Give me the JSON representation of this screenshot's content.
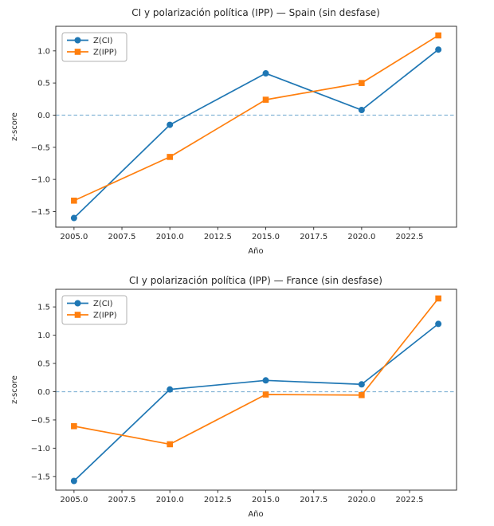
{
  "figure": {
    "background": "#ffffff",
    "text_color": "#262626",
    "spine_color": "#333333"
  },
  "chart_data": [
    {
      "type": "line",
      "title": "CI y polarización política (IPP) — Spain (sin desfase)",
      "xlabel": "Año",
      "ylabel": "z-score",
      "x": [
        2005,
        2010,
        2015,
        2020,
        2024
      ],
      "series": [
        {
          "name": "Z(CI)",
          "color": "#1f77b4",
          "marker": "circle",
          "values": [
            -1.6,
            -0.15,
            0.65,
            0.08,
            1.02
          ]
        },
        {
          "name": "Z(IPP)",
          "color": "#ff7f0e",
          "marker": "square",
          "values": [
            -1.33,
            -0.65,
            0.24,
            0.5,
            1.24
          ]
        }
      ],
      "baseline_y": 0,
      "baseline_color": "#1f77b4",
      "baseline_style": "dashed",
      "x_ticks": [
        "2005.0",
        "2007.5",
        "2010.0",
        "2012.5",
        "2015.0",
        "2017.5",
        "2020.0",
        "2022.5"
      ],
      "y_ticks": [
        "1.0",
        "0.5",
        "0.0",
        "-0.5",
        "-1.0",
        "-1.5"
      ],
      "xlim": [
        2004.05,
        2024.95
      ],
      "ylim": [
        -1.742,
        1.382
      ],
      "grid": false,
      "legend_position": "upper left"
    },
    {
      "type": "line",
      "title": "CI y polarización política (IPP) — France (sin desfase)",
      "xlabel": "Año",
      "ylabel": "z-score",
      "x": [
        2005,
        2010,
        2015,
        2020,
        2024
      ],
      "series": [
        {
          "name": "Z(CI)",
          "color": "#1f77b4",
          "marker": "circle",
          "values": [
            -1.58,
            0.04,
            0.2,
            0.13,
            1.2
          ]
        },
        {
          "name": "Z(IPP)",
          "color": "#ff7f0e",
          "marker": "square",
          "values": [
            -0.61,
            -0.93,
            -0.05,
            -0.06,
            1.65
          ]
        }
      ],
      "baseline_y": 0,
      "baseline_color": "#1f77b4",
      "baseline_style": "dashed",
      "x_ticks": [
        "2005.0",
        "2007.5",
        "2010.0",
        "2012.5",
        "2015.0",
        "2017.5",
        "2020.0",
        "2022.5"
      ],
      "y_ticks": [
        "1.5",
        "1.0",
        "0.5",
        "0.0",
        "-0.5",
        "-1.0",
        "-1.5"
      ],
      "xlim": [
        2004.05,
        2024.95
      ],
      "ylim": [
        -1.742,
        1.812
      ],
      "grid": false,
      "legend_position": "upper left"
    }
  ]
}
